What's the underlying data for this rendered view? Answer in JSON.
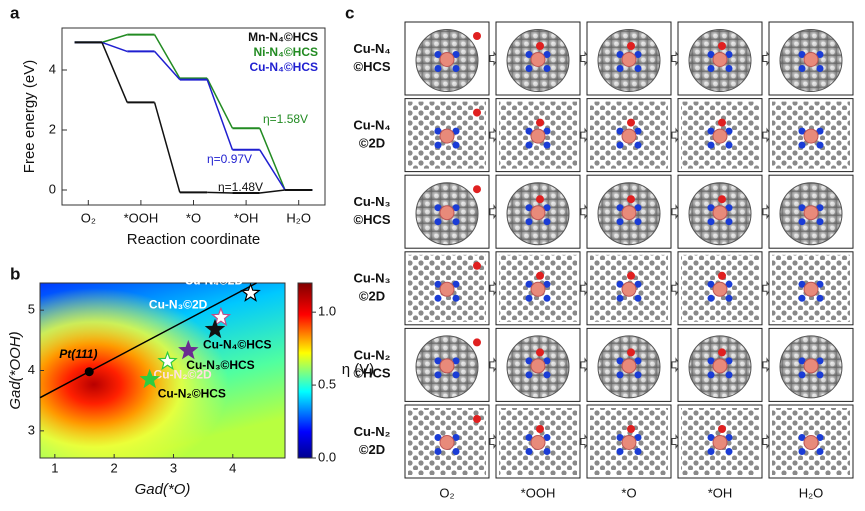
{
  "chart_data": [
    {
      "type": "line",
      "panel_label": "a",
      "ylabel": "Free energy (eV)",
      "xlabel": "Reaction coordinate",
      "categories": [
        "O₂",
        "*OOH",
        "*O",
        "*OH",
        "H₂O"
      ],
      "series": [
        {
          "name": "Mn-N₄©HCS",
          "color": "#111111",
          "values": [
            4.92,
            2.92,
            -0.08,
            -0.1,
            0
          ]
        },
        {
          "name": "Ni-N₄©HCS",
          "color": "#228b22",
          "values": [
            4.92,
            5.18,
            3.72,
            2.06,
            0
          ]
        },
        {
          "name": "Cu-N₄©HCS",
          "color": "#1f1fd0",
          "values": [
            4.92,
            4.62,
            3.68,
            1.34,
            0
          ]
        }
      ],
      "annotations": [
        {
          "text": "η=1.58V",
          "color": "#228b22"
        },
        {
          "text": "η=0.97V",
          "color": "#1f1fd0"
        },
        {
          "text": "η=1.48V",
          "color": "#111111"
        }
      ],
      "ylim": [
        -0.5,
        5.4
      ],
      "yticks": [
        0,
        2,
        4
      ]
    },
    {
      "type": "scatter",
      "panel_label": "b",
      "xlabel": "Gad(*O)",
      "ylabel": "Gad(*OOH)",
      "colorbar_label": "η (V)",
      "xlim": [
        0.75,
        4.88
      ],
      "xticks": [
        1,
        2,
        3,
        4
      ],
      "ylim": [
        2.55,
        5.45
      ],
      "yticks": [
        3,
        4,
        5
      ],
      "colorbar_lim": [
        0,
        1.2
      ],
      "colorbar_ticks": [
        {
          "value": 0,
          "label": "0.0"
        },
        {
          "value": 0.5,
          "label": "0.5"
        },
        {
          "value": 1,
          "label": "1.0"
        }
      ],
      "line": {
        "x": [
          0.75,
          4.4
        ],
        "values": [
          3.55,
          5.45
        ],
        "color": "#000000"
      },
      "series": [
        {
          "name": "Pt(111)",
          "marker": "circle",
          "color": "#000000",
          "edgecolor": "#000000",
          "label_color": "#000000",
          "x": [
            1.58
          ],
          "values": [
            3.98
          ]
        },
        {
          "name": "Cu-N₄©2D",
          "marker": "star",
          "color": "#ffffff",
          "edgecolor": "#000000",
          "label_color": "#ffffff",
          "x": [
            4.3
          ],
          "values": [
            5.28
          ]
        },
        {
          "name": "Cu-N₃©2D",
          "marker": "star",
          "color": "#ffffff",
          "edgecolor": "#c0508a",
          "label_color": "#ffffff",
          "x": [
            3.8
          ],
          "values": [
            4.88
          ]
        },
        {
          "name": "Cu-N₄©HCS",
          "marker": "star",
          "color": "#111111",
          "edgecolor": "#111111",
          "label_color": "#000000",
          "x": [
            3.7
          ],
          "values": [
            4.68
          ]
        },
        {
          "name": "Cu-N₃©HCS",
          "marker": "star",
          "color": "#6a2c91",
          "edgecolor": "#6a2c91",
          "label_color": "#000000",
          "x": [
            3.25
          ],
          "values": [
            4.33
          ]
        },
        {
          "name": "Cu-N₂©2D",
          "marker": "star",
          "color": "#ffffff",
          "edgecolor": "#2ecc40",
          "label_color": "#ffe0e0",
          "x": [
            2.9
          ],
          "values": [
            4.15
          ]
        },
        {
          "name": "Cu-N₂©HCS",
          "marker": "star",
          "color": "#2ecc40",
          "edgecolor": "#2ecc40",
          "label_color": "#000000",
          "x": [
            2.6
          ],
          "values": [
            3.85
          ]
        }
      ]
    }
  ],
  "panel_c": {
    "label": "c",
    "rows": [
      [
        "Cu-N₄",
        "©HCS"
      ],
      [
        "Cu-N₄",
        "©2D"
      ],
      [
        "Cu-N₃",
        "©HCS"
      ],
      [
        "Cu-N₃",
        "©2D"
      ],
      [
        "Cu-N₂",
        "©HCS"
      ],
      [
        "Cu-N₂",
        "©2D"
      ]
    ],
    "columns": [
      "O₂",
      "*OOH",
      "*O",
      "*OH",
      "H₂O"
    ]
  }
}
